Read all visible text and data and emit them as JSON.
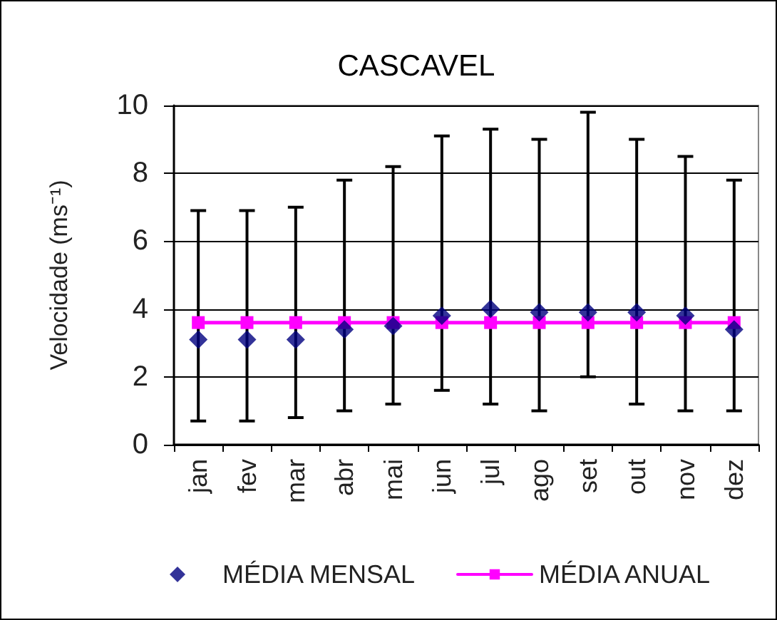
{
  "chart_data": {
    "type": "scatter",
    "title": "CASCAVEL",
    "ylabel": "Velocidade (ms⁻¹)",
    "categories": [
      "jan",
      "fev",
      "mar",
      "abr",
      "mai",
      "jun",
      "jul",
      "ago",
      "set",
      "out",
      "nov",
      "dez"
    ],
    "series": [
      {
        "name": "MÉDIA MENSAL",
        "color": "#000080",
        "marker": "diamond",
        "values": [
          3.1,
          3.1,
          3.1,
          3.4,
          3.5,
          3.8,
          4.0,
          3.9,
          3.9,
          3.9,
          3.8,
          3.4
        ],
        "errors": [
          [
            0.7,
            6.9
          ],
          [
            0.7,
            6.9
          ],
          [
            0.8,
            7.0
          ],
          [
            1.0,
            7.8
          ],
          [
            1.2,
            8.2
          ],
          [
            1.6,
            9.1
          ],
          [
            1.2,
            9.3
          ],
          [
            1.0,
            9.0
          ],
          [
            2.0,
            9.8
          ],
          [
            1.2,
            9.0
          ],
          [
            1.0,
            8.5
          ],
          [
            1.0,
            7.8
          ]
        ]
      },
      {
        "name": "MÉDIA ANUAL",
        "type": "line",
        "color": "#ff00ff",
        "marker": "square",
        "values": [
          3.6,
          3.6,
          3.6,
          3.6,
          3.6,
          3.6,
          3.6,
          3.6,
          3.6,
          3.6,
          3.6,
          3.6
        ]
      }
    ],
    "ylim": [
      0,
      10
    ],
    "yticks": [
      0,
      2,
      4,
      6,
      8,
      10
    ],
    "grid": "y",
    "legend": "bottom"
  }
}
